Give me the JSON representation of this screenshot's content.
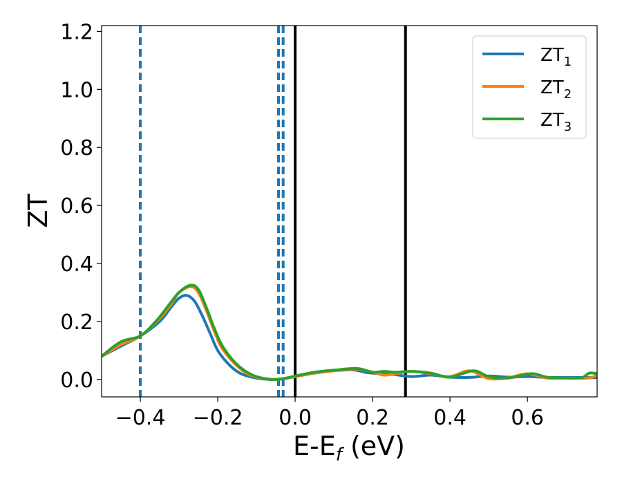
{
  "chart_data": {
    "type": "line",
    "xlabel": "E-E",
    "xlabel_sub": "f",
    "xlabel_unit": " (eV)",
    "ylabel": "ZT",
    "xlim": [
      -0.5,
      0.78
    ],
    "ylim": [
      -0.06,
      1.22
    ],
    "xticks": [
      -0.4,
      -0.2,
      0.0,
      0.2,
      0.4,
      0.6
    ],
    "xtick_labels": [
      "−0.4",
      "−0.2",
      "0.0",
      "0.2",
      "0.4",
      "0.6"
    ],
    "yticks": [
      0.0,
      0.2,
      0.4,
      0.6,
      0.8,
      1.0,
      1.2
    ],
    "ytick_labels": [
      "0.0",
      "0.2",
      "0.4",
      "0.6",
      "0.8",
      "1.0",
      "1.2"
    ],
    "grid": false,
    "legend": "top-right",
    "series": [
      {
        "name": "ZT",
        "sub": "1",
        "color": "#1f77b4",
        "x": [
          -0.5,
          -0.45,
          -0.4,
          -0.35,
          -0.32,
          -0.3,
          -0.28,
          -0.26,
          -0.24,
          -0.22,
          -0.2,
          -0.17,
          -0.14,
          -0.1,
          -0.06,
          -0.03,
          0.0,
          0.05,
          0.1,
          0.15,
          0.18,
          0.2,
          0.25,
          0.3,
          0.35,
          0.4,
          0.45,
          0.5,
          0.55,
          0.6,
          0.65,
          0.7,
          0.78
        ],
        "y": [
          0.08,
          0.115,
          0.15,
          0.2,
          0.25,
          0.28,
          0.29,
          0.27,
          0.22,
          0.16,
          0.1,
          0.05,
          0.02,
          0.005,
          0.0,
          0.003,
          0.01,
          0.022,
          0.03,
          0.033,
          0.025,
          0.022,
          0.018,
          0.01,
          0.015,
          0.008,
          0.007,
          0.012,
          0.008,
          0.01,
          0.007,
          0.007,
          0.006
        ]
      },
      {
        "name": "ZT",
        "sub": "2",
        "color": "#ff7f0e",
        "x": [
          -0.5,
          -0.45,
          -0.4,
          -0.35,
          -0.32,
          -0.3,
          -0.27,
          -0.25,
          -0.23,
          -0.21,
          -0.19,
          -0.16,
          -0.13,
          -0.1,
          -0.06,
          -0.03,
          0.0,
          0.05,
          0.1,
          0.16,
          0.2,
          0.23,
          0.26,
          0.3,
          0.35,
          0.4,
          0.45,
          0.5,
          0.55,
          0.6,
          0.65,
          0.7,
          0.76,
          0.78
        ],
        "y": [
          0.08,
          0.12,
          0.15,
          0.21,
          0.26,
          0.3,
          0.32,
          0.3,
          0.24,
          0.17,
          0.11,
          0.06,
          0.025,
          0.008,
          0.0,
          0.003,
          0.01,
          0.022,
          0.03,
          0.036,
          0.025,
          0.015,
          0.02,
          0.028,
          0.02,
          0.01,
          0.03,
          0.003,
          0.006,
          0.02,
          0.005,
          0.005,
          0.005,
          0.018
        ]
      },
      {
        "name": "ZT",
        "sub": "3",
        "color": "#2ca02c",
        "x": [
          -0.5,
          -0.45,
          -0.4,
          -0.36,
          -0.33,
          -0.3,
          -0.27,
          -0.25,
          -0.23,
          -0.21,
          -0.19,
          -0.16,
          -0.13,
          -0.1,
          -0.06,
          -0.03,
          0.0,
          0.05,
          0.1,
          0.16,
          0.2,
          0.23,
          0.26,
          0.3,
          0.35,
          0.4,
          0.46,
          0.5,
          0.55,
          0.61,
          0.65,
          0.7,
          0.74,
          0.76,
          0.78
        ],
        "y": [
          0.08,
          0.13,
          0.15,
          0.2,
          0.25,
          0.3,
          0.325,
          0.31,
          0.25,
          0.18,
          0.12,
          0.065,
          0.03,
          0.01,
          0.0,
          0.003,
          0.012,
          0.025,
          0.032,
          0.038,
          0.025,
          0.028,
          0.025,
          0.028,
          0.022,
          0.008,
          0.03,
          0.01,
          0.005,
          0.02,
          0.008,
          0.005,
          0.006,
          0.022,
          0.02
        ]
      }
    ],
    "vlines": [
      {
        "x": -0.4,
        "style": "dashed",
        "color": "#1f77b4"
      },
      {
        "x": -0.043,
        "style": "dashed",
        "color": "#1f77b4"
      },
      {
        "x": -0.031,
        "style": "dashed",
        "color": "#1f77b4"
      },
      {
        "x": 0.0,
        "style": "solid",
        "color": "#000000"
      },
      {
        "x": 0.285,
        "style": "solid",
        "color": "#000000"
      }
    ]
  }
}
